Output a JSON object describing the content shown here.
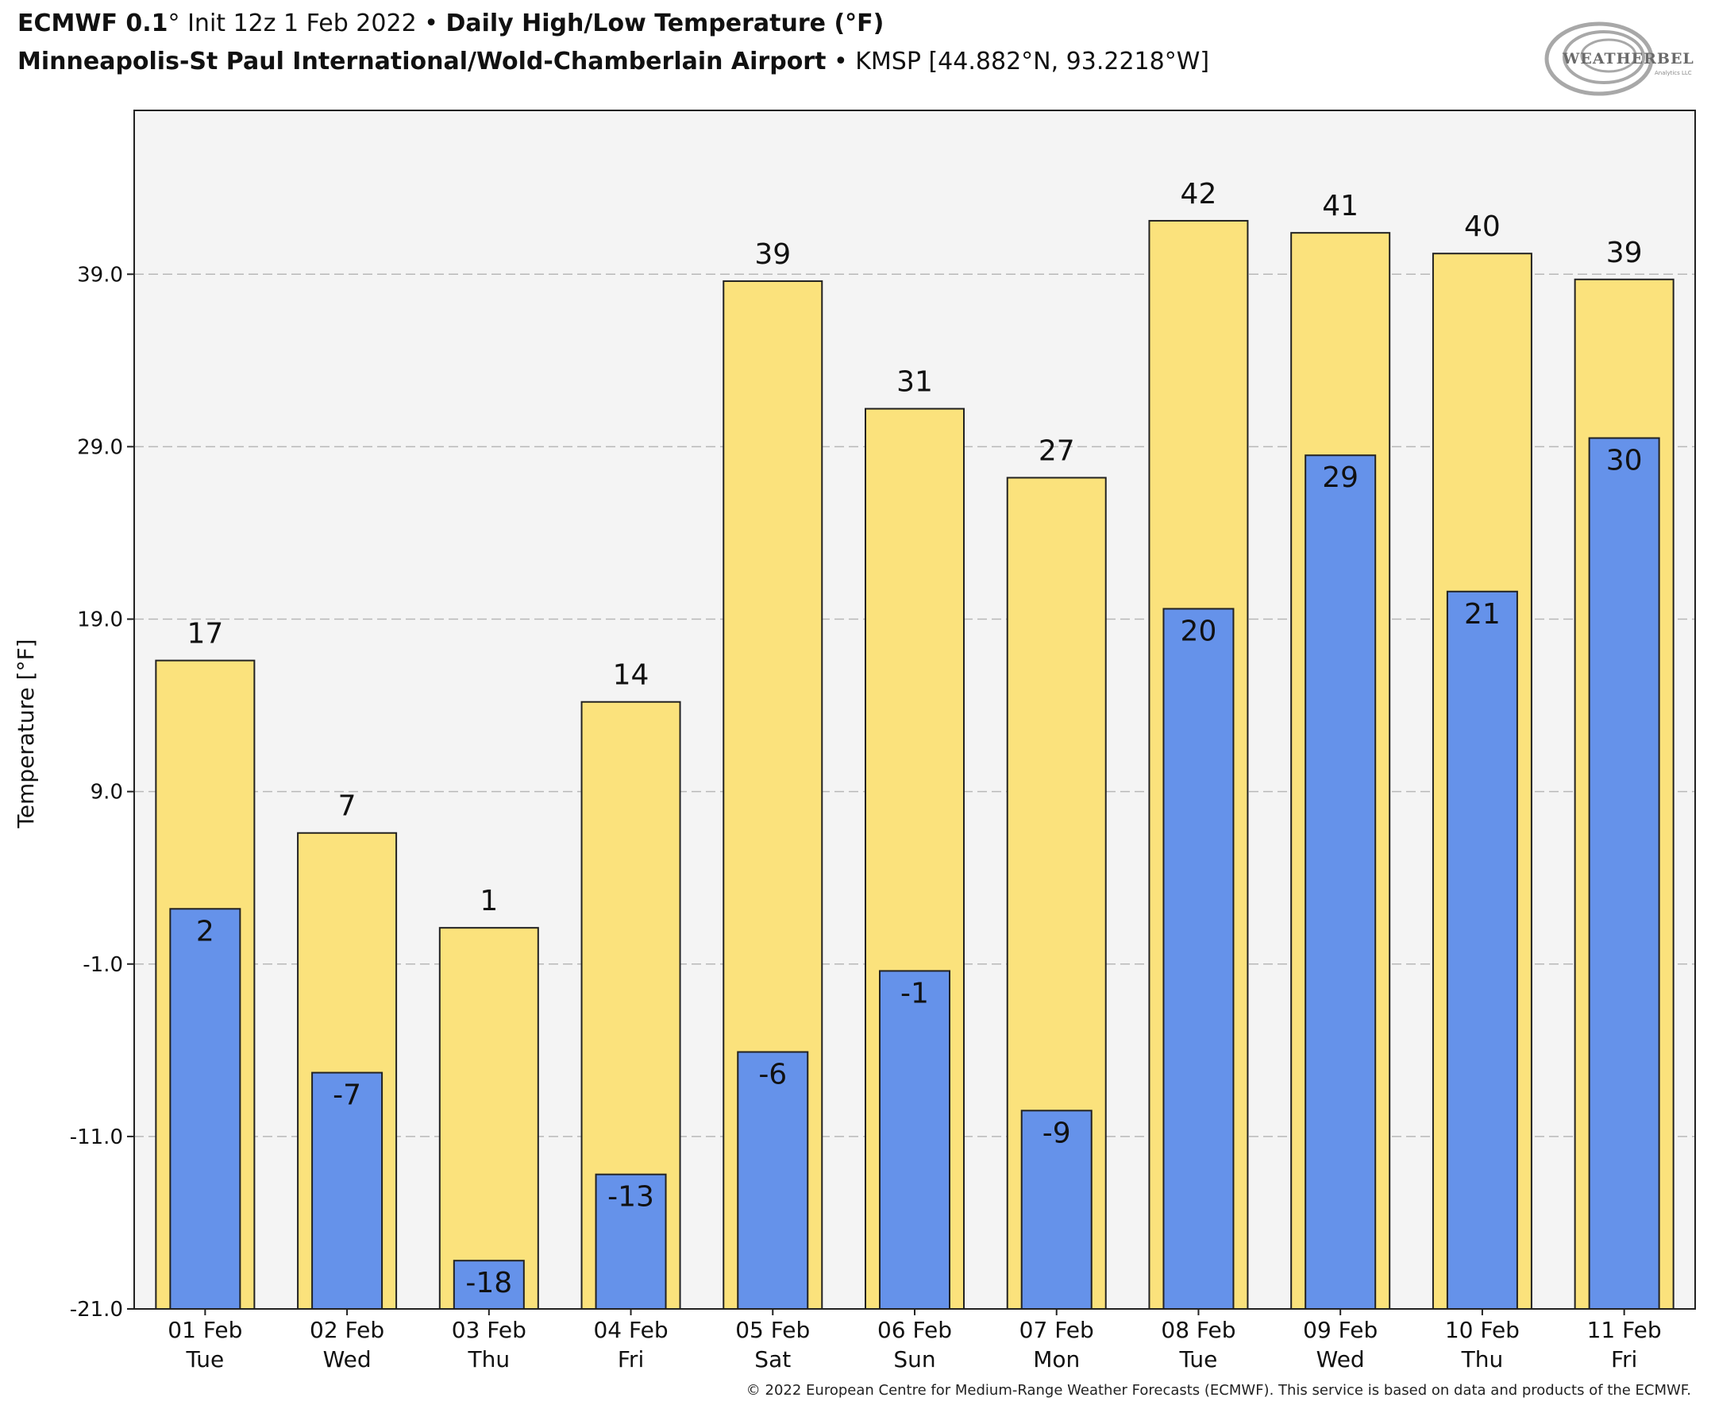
{
  "header": {
    "model": "ECMWF 0.1",
    "deg": "°",
    "init": " Init 12z 1 Feb 2022 ",
    "bullet": "•",
    "product": "Daily High/Low Temperature (°F)",
    "station_name": "Minneapolis-St Paul International/Wold-Chamberlain Airport",
    "station_info": "KMSP [44.882°N, 93.2218°W]"
  },
  "logo": {
    "text_main": "WEATHERBELL",
    "text_sub": "Analytics LLC"
  },
  "footer": {
    "copyright": "© 2022 European Centre for Medium-Range Weather Forecasts (ECMWF). This service is based on data and products of the ECMWF."
  },
  "colors": {
    "high": "#fbe27c",
    "low": "#6592ea",
    "plot_bg": "#f4f4f4",
    "grid": "#b8b8b8"
  },
  "chart_data": {
    "type": "bar",
    "ylabel": "Temperature [°F]",
    "ylim": [
      -21,
      48.5
    ],
    "yticks": [
      39.0,
      29.0,
      19.0,
      9.0,
      -1.0,
      -11.0,
      -21.0
    ],
    "grid": true,
    "categories": [
      [
        "01 Feb",
        "Tue"
      ],
      [
        "02 Feb",
        "Wed"
      ],
      [
        "03 Feb",
        "Thu"
      ],
      [
        "04 Feb",
        "Fri"
      ],
      [
        "05 Feb",
        "Sat"
      ],
      [
        "06 Feb",
        "Sun"
      ],
      [
        "07 Feb",
        "Mon"
      ],
      [
        "08 Feb",
        "Tue"
      ],
      [
        "09 Feb",
        "Wed"
      ],
      [
        "10 Feb",
        "Thu"
      ],
      [
        "11 Feb",
        "Fri"
      ]
    ],
    "series": [
      {
        "values": [
          17,
          7,
          1,
          14,
          39,
          31,
          27,
          42,
          41,
          40,
          39
        ],
        "exact": [
          16.6,
          6.6,
          1.1,
          14.2,
          38.6,
          31.2,
          27.2,
          42.1,
          41.4,
          40.2,
          38.7
        ]
      },
      {
        "values": [
          2,
          -7,
          -18,
          -13,
          -6,
          -1,
          -9,
          20,
          29,
          21,
          30
        ],
        "exact": [
          2.2,
          -7.3,
          -18.2,
          -13.2,
          -6.1,
          -1.4,
          -9.5,
          19.6,
          28.5,
          20.6,
          29.5
        ]
      }
    ]
  }
}
